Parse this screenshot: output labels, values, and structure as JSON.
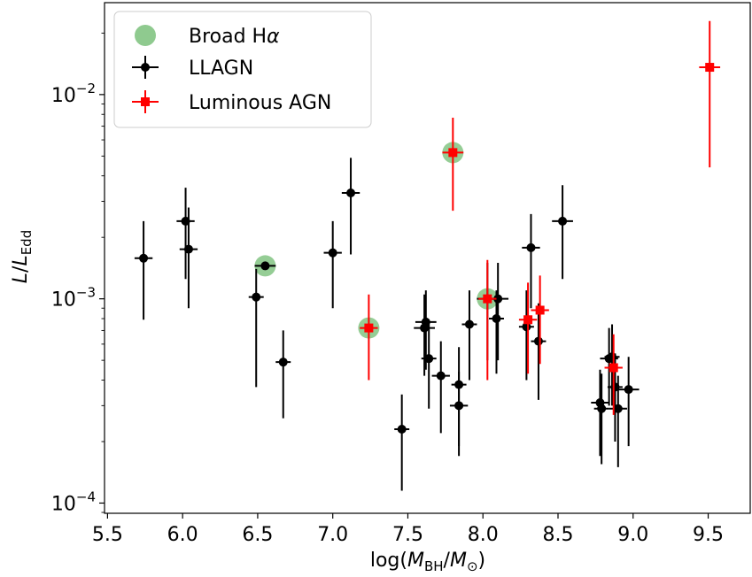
{
  "chart_data": {
    "type": "scatter",
    "title": "",
    "xlabel": "log(M_BH/M_⊙)",
    "ylabel": "L/L_Edd",
    "xlim": [
      5.48,
      9.78
    ],
    "ylim_log10": [
      -4.05,
      -1.55
    ],
    "yscale": "log",
    "x_ticks": [
      5.5,
      6.0,
      6.5,
      7.0,
      7.5,
      8.0,
      8.5,
      9.0,
      9.5
    ],
    "x_tick_labels": [
      "5.5",
      "6.0",
      "6.5",
      "7.0",
      "7.5",
      "8.0",
      "8.5",
      "9.0",
      "9.5"
    ],
    "y_ticks": [
      0.0001,
      0.001,
      0.01
    ],
    "legend_position": "upper-left",
    "series": [
      {
        "name": "Broad Hα",
        "color": "#8fca8f",
        "marker": "circle-large",
        "points": [
          {
            "x": 6.55,
            "y": 0.00145
          },
          {
            "x": 7.24,
            "y": 0.00072
          },
          {
            "x": 7.8,
            "y": 0.0052
          },
          {
            "x": 8.03,
            "y": 0.001
          }
        ]
      },
      {
        "name": "LLAGN",
        "color": "#000000",
        "marker": "circle",
        "points": [
          {
            "x": 5.74,
            "y": 0.00158,
            "xerr": 0.06,
            "ylo": 0.00079,
            "yhi": 0.0024
          },
          {
            "x": 6.02,
            "y": 0.0024,
            "xerr": 0.06,
            "ylo": 0.00125,
            "yhi": 0.0035
          },
          {
            "x": 6.04,
            "y": 0.00175,
            "xerr": 0.06,
            "ylo": 0.0009,
            "yhi": 0.0028
          },
          {
            "x": 6.49,
            "y": 0.00102,
            "xerr": 0.05,
            "ylo": 0.00037,
            "yhi": 0.0014
          },
          {
            "x": 6.55,
            "y": 0.00145,
            "xerr": 0.07,
            "ylo": 0.00145,
            "yhi": 0.00145
          },
          {
            "x": 6.67,
            "y": 0.00049,
            "xerr": 0.05,
            "ylo": 0.00026,
            "yhi": 0.0007
          },
          {
            "x": 7.0,
            "y": 0.00168,
            "xerr": 0.06,
            "ylo": 0.0009,
            "yhi": 0.0024
          },
          {
            "x": 7.12,
            "y": 0.0033,
            "xerr": 0.06,
            "ylo": 0.00165,
            "yhi": 0.0049
          },
          {
            "x": 7.46,
            "y": 0.00023,
            "xerr": 0.05,
            "ylo": 0.000115,
            "yhi": 0.00034
          },
          {
            "x": 7.62,
            "y": 0.00077,
            "xerr": 0.07,
            "ylo": 0.00045,
            "yhi": 0.0011
          },
          {
            "x": 7.61,
            "y": 0.00072,
            "xerr": 0.07,
            "ylo": 0.00042,
            "yhi": 0.00105
          },
          {
            "x": 7.64,
            "y": 0.00051,
            "xerr": 0.05,
            "ylo": 0.00029,
            "yhi": 0.00075
          },
          {
            "x": 7.72,
            "y": 0.00042,
            "xerr": 0.06,
            "ylo": 0.00022,
            "yhi": 0.00062
          },
          {
            "x": 7.84,
            "y": 0.00038,
            "xerr": 0.05,
            "ylo": 0.00019,
            "yhi": 0.00058
          },
          {
            "x": 7.84,
            "y": 0.0003,
            "xerr": 0.06,
            "ylo": 0.00017,
            "yhi": 0.00044
          },
          {
            "x": 7.91,
            "y": 0.00075,
            "xerr": 0.05,
            "ylo": 0.0004,
            "yhi": 0.0011
          },
          {
            "x": 8.03,
            "y": 0.001,
            "xerr": 0.07,
            "ylo": 0.0005,
            "yhi": 0.0015
          },
          {
            "x": 8.09,
            "y": 0.0008,
            "xerr": 0.05,
            "ylo": 0.00043,
            "yhi": 0.0011
          },
          {
            "x": 8.1,
            "y": 0.001,
            "xerr": 0.07,
            "ylo": 0.0005,
            "yhi": 0.0015
          },
          {
            "x": 8.29,
            "y": 0.00073,
            "xerr": 0.05,
            "ylo": 0.0004,
            "yhi": 0.0011
          },
          {
            "x": 8.32,
            "y": 0.00178,
            "xerr": 0.06,
            "ylo": 0.0009,
            "yhi": 0.0026
          },
          {
            "x": 8.37,
            "y": 0.00062,
            "xerr": 0.05,
            "ylo": 0.00032,
            "yhi": 0.00095
          },
          {
            "x": 8.53,
            "y": 0.0024,
            "xerr": 0.07,
            "ylo": 0.00125,
            "yhi": 0.0036
          },
          {
            "x": 8.78,
            "y": 0.00031,
            "xerr": 0.06,
            "ylo": 0.00017,
            "yhi": 0.00045
          },
          {
            "x": 8.79,
            "y": 0.00029,
            "xerr": 0.05,
            "ylo": 0.000155,
            "yhi": 0.00043
          },
          {
            "x": 8.84,
            "y": 0.00051,
            "xerr": 0.06,
            "ylo": 0.0003,
            "yhi": 0.00072
          },
          {
            "x": 8.86,
            "y": 0.00052,
            "xerr": 0.05,
            "ylo": 0.0003,
            "yhi": 0.00075
          },
          {
            "x": 8.88,
            "y": 0.00037,
            "xerr": 0.05,
            "ylo": 0.0002,
            "yhi": 0.00054
          },
          {
            "x": 8.9,
            "y": 0.00029,
            "xerr": 0.06,
            "ylo": 0.00015,
            "yhi": 0.00042
          },
          {
            "x": 8.97,
            "y": 0.00036,
            "xerr": 0.07,
            "ylo": 0.00019,
            "yhi": 0.00052
          }
        ]
      },
      {
        "name": "Luminous AGN",
        "color": "#ff0000",
        "marker": "square",
        "points": [
          {
            "x": 7.24,
            "y": 0.00072,
            "xerr": 0.06,
            "ylo": 0.0004,
            "yhi": 0.00105
          },
          {
            "x": 7.8,
            "y": 0.0052,
            "xerr": 0.07,
            "ylo": 0.0027,
            "yhi": 0.0077
          },
          {
            "x": 8.03,
            "y": 0.001,
            "xerr": 0.06,
            "ylo": 0.0004,
            "yhi": 0.00155
          },
          {
            "x": 8.3,
            "y": 0.00079,
            "xerr": 0.06,
            "ylo": 0.00043,
            "yhi": 0.0012
          },
          {
            "x": 8.38,
            "y": 0.00088,
            "xerr": 0.06,
            "ylo": 0.00048,
            "yhi": 0.0013
          },
          {
            "x": 8.87,
            "y": 0.00046,
            "xerr": 0.06,
            "ylo": 0.00027,
            "yhi": 0.00067
          },
          {
            "x": 9.51,
            "y": 0.0136,
            "xerr": 0.07,
            "ylo": 0.0044,
            "yhi": 0.0229
          }
        ]
      }
    ]
  }
}
